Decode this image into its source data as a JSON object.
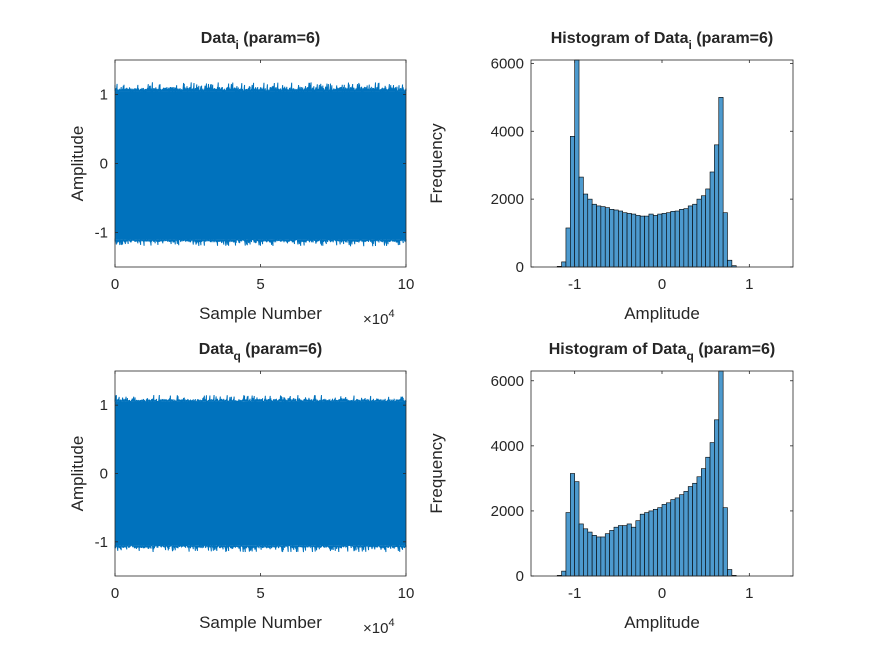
{
  "figure": {
    "background": "#ffffff",
    "axis_color": "#262626",
    "line_color": "#0072BD",
    "bar_color": "#4D9ACE",
    "bar_edge_color": "#000000"
  },
  "chart_data": [
    {
      "type": "line",
      "title_main": "Data",
      "title_sub": "i",
      "title_rest": " (param=6)",
      "xlabel": "Sample Number",
      "ylabel": "Amplitude",
      "xlim": [
        0,
        100000
      ],
      "ylim": [
        -1.5,
        1.5
      ],
      "xticks": [
        0,
        50000,
        100000
      ],
      "xtick_labels": [
        "0",
        "5",
        "10"
      ],
      "yticks": [
        -1,
        0,
        1
      ],
      "ytick_labels": [
        "-1",
        "0",
        "1"
      ],
      "x_exponent_base": "×10",
      "x_exponent_power": "4",
      "grid": false,
      "series": [
        {
          "envelope_upper": 1.05,
          "envelope_lower": -1.1,
          "peak_max": 1.18,
          "peak_min": -1.2
        }
      ]
    },
    {
      "type": "bar",
      "title_main": "Histogram of Data",
      "title_sub": "i",
      "title_rest": " (param=6)",
      "xlabel": "Amplitude",
      "ylabel": "Frequency",
      "xlim": [
        -1.5,
        1.5
      ],
      "ylim": [
        0,
        6100
      ],
      "xticks": [
        -1,
        0,
        1
      ],
      "xtick_labels": [
        "-1",
        "0",
        "1"
      ],
      "yticks": [
        0,
        2000,
        4000,
        6000
      ],
      "ytick_labels": [
        "0",
        "2000",
        "4000",
        "6000"
      ],
      "grid": false,
      "bin_start": -1.2,
      "bin_width": 0.05,
      "values": [
        20,
        150,
        1150,
        3850,
        6100,
        2650,
        2150,
        2000,
        1850,
        1800,
        1780,
        1750,
        1700,
        1680,
        1650,
        1600,
        1580,
        1560,
        1520,
        1500,
        1500,
        1560,
        1520,
        1560,
        1580,
        1600,
        1640,
        1650,
        1700,
        1720,
        1800,
        1850,
        2000,
        2100,
        2300,
        2800,
        3600,
        5000,
        1600,
        200,
        40
      ]
    },
    {
      "type": "line",
      "title_main": "Data",
      "title_sub": "q",
      "title_rest": " (param=6)",
      "xlabel": "Sample Number",
      "ylabel": "Amplitude",
      "xlim": [
        0,
        100000
      ],
      "ylim": [
        -1.5,
        1.5
      ],
      "xticks": [
        0,
        50000,
        100000
      ],
      "xtick_labels": [
        "0",
        "5",
        "10"
      ],
      "yticks": [
        -1,
        0,
        1
      ],
      "ytick_labels": [
        "-1",
        "0",
        "1"
      ],
      "x_exponent_base": "×10",
      "x_exponent_power": "4",
      "grid": false,
      "series": [
        {
          "envelope_upper": 1.05,
          "envelope_lower": -1.05,
          "peak_max": 1.15,
          "peak_min": -1.15
        }
      ]
    },
    {
      "type": "bar",
      "title_main": "Histogram of Data",
      "title_sub": "q",
      "title_rest": " (param=6)",
      "xlabel": "Amplitude",
      "ylabel": "Frequency",
      "xlim": [
        -1.5,
        1.5
      ],
      "ylim": [
        0,
        6300
      ],
      "xticks": [
        -1,
        0,
        1
      ],
      "xtick_labels": [
        "-1",
        "0",
        "1"
      ],
      "yticks": [
        0,
        2000,
        4000,
        6000
      ],
      "ytick_labels": [
        "0",
        "2000",
        "4000",
        "6000"
      ],
      "grid": false,
      "bin_start": -1.2,
      "bin_width": 0.05,
      "values": [
        20,
        150,
        1950,
        3150,
        2900,
        1600,
        1450,
        1350,
        1250,
        1200,
        1200,
        1300,
        1400,
        1500,
        1550,
        1550,
        1600,
        1500,
        1700,
        1900,
        1950,
        2000,
        2050,
        2100,
        2200,
        2250,
        2350,
        2400,
        2500,
        2600,
        2750,
        2850,
        3050,
        3300,
        3650,
        4100,
        4800,
        6300,
        2100,
        200,
        20
      ]
    }
  ]
}
